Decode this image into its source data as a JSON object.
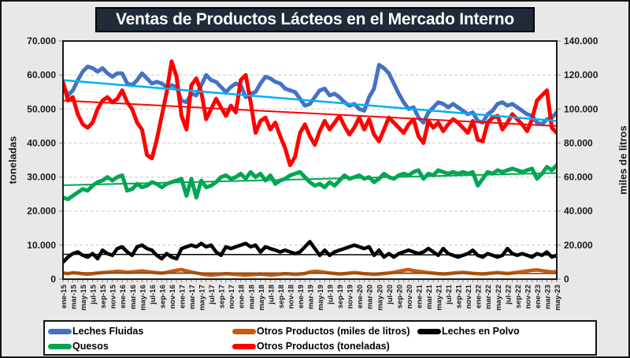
{
  "title": "Ventas de Productos Lácteos en el Mercado Interno",
  "legend": {
    "items": [
      {
        "label": "Leches Fluidas",
        "color": "#4472C4"
      },
      {
        "label": "Otros Productos (miles de litros)",
        "color": "#C55A11"
      },
      {
        "label": "Leches en Polvo",
        "color": "#000000"
      },
      {
        "label": "Quesos",
        "color": "#00A651"
      },
      {
        "label": "Otros Productos (toneladas)",
        "color": "#FF0000"
      }
    ]
  },
  "chart_data": {
    "type": "line",
    "title": "Ventas de Productos Lácteos en el Mercado Interno",
    "ylabel_left": "toneladas",
    "ylabel_right": "miles de litros",
    "ylim_left": [
      0,
      70000
    ],
    "ylim_right": [
      0,
      140000
    ],
    "grid": "horizontal-dashed",
    "legend_position": "bottom",
    "x_count": 101,
    "x_tick_step": 2,
    "y_left_tick_labels": [
      "0",
      "10.000",
      "20.000",
      "30.000",
      "40.000",
      "50.000",
      "60.000",
      "70.000"
    ],
    "y_right_tick_labels": [
      "0",
      "20.000",
      "40.000",
      "60.000",
      "80.000",
      "100.000",
      "120.000",
      "140.000"
    ],
    "x_tick_labels": [
      "ene-15",
      "mar-15",
      "may-15",
      "jul-15",
      "sep-15",
      "nov-15",
      "ene-16",
      "mar-16",
      "may-16",
      "jul-16",
      "sep-16",
      "nov-16",
      "ene-17",
      "mar-17",
      "may-17",
      "jul-17",
      "sep-17",
      "nov-17",
      "ene-18",
      "mar-18",
      "may-18",
      "jul-18",
      "sep-18",
      "nov-18",
      "ene-19",
      "mar-19",
      "may-19",
      "jul-19",
      "sep-19",
      "nov-19",
      "ene-20",
      "mar-20",
      "may-20",
      "jul-20",
      "sep-20",
      "nov-20",
      "ene-21",
      "mar-21",
      "may-21",
      "jul-21",
      "sep-21",
      "nov-21",
      "ene-22",
      "mar-22",
      "may-22",
      "jul-22",
      "sep-22",
      "nov-22",
      "ene-23",
      "mar-23",
      "may-23"
    ],
    "series": [
      {
        "id": "quesos",
        "name": "Quesos",
        "axis": "left",
        "color": "#00A651",
        "width": 5,
        "values": [
          24000,
          23500,
          24500,
          25500,
          26500,
          26000,
          27500,
          28500,
          29000,
          30000,
          29000,
          30000,
          30500,
          26000,
          26500,
          28000,
          27000,
          27500,
          28500,
          28000,
          27000,
          28000,
          28500,
          29000,
          29500,
          24500,
          29500,
          24000,
          29000,
          27000,
          27500,
          28500,
          30000,
          30500,
          29500,
          30000,
          31000,
          29500,
          31500,
          30000,
          31000,
          29000,
          30500,
          28000,
          29000,
          29500,
          30500,
          31000,
          31500,
          30000,
          28500,
          27500,
          28000,
          27000,
          28500,
          27500,
          29000,
          30500,
          29500,
          30000,
          30500,
          29500,
          30000,
          28500,
          29500,
          31000,
          30000,
          29500,
          30500,
          31000,
          30500,
          31500,
          32000,
          29500,
          31000,
          30500,
          32000,
          31500,
          31000,
          31500,
          31000,
          31500,
          31000,
          31500,
          27500,
          29500,
          31500,
          31000,
          32000,
          31500,
          32000,
          32500,
          32000,
          31500,
          32000,
          32500,
          29500,
          31000,
          33000,
          32000,
          33500
        ]
      },
      {
        "id": "otros_ml",
        "name": "Otros Productos (miles de litros)",
        "axis": "right",
        "color": "#C55A11",
        "width": 4.5,
        "values": [
          3600,
          3200,
          3800,
          3500,
          3100,
          2900,
          3200,
          3600,
          3900,
          4100,
          4300,
          4600,
          4400,
          4000,
          4200,
          4500,
          4800,
          4400,
          4100,
          3800,
          3500,
          4000,
          4600,
          5200,
          5600,
          4800,
          4200,
          3600,
          3000,
          2600,
          2400,
          2600,
          2900,
          3200,
          3000,
          2800,
          2600,
          2400,
          2600,
          2800,
          3000,
          2700,
          2400,
          2600,
          2900,
          3200,
          3000,
          2800,
          3000,
          3300,
          4200,
          4600,
          4400,
          4000,
          3600,
          3300,
          3000,
          3200,
          3500,
          3800,
          3500,
          3200,
          3000,
          2800,
          3000,
          3300,
          3600,
          4000,
          4600,
          5200,
          5600,
          5000,
          4600,
          4200,
          3800,
          3500,
          3200,
          3000,
          3200,
          3500,
          3800,
          4000,
          3700,
          3400,
          3200,
          3000,
          3300,
          3600,
          3900,
          3600,
          3300,
          3600,
          4000,
          4400,
          4800,
          5200,
          5400,
          5000,
          4600,
          4200,
          4400
        ]
      },
      {
        "id": "fluidas",
        "name": "Leches Fluidas",
        "axis": "left",
        "color": "#4472C4",
        "width": 5,
        "values": [
          57000,
          54000,
          55500,
          58500,
          61000,
          62500,
          62000,
          61000,
          62000,
          60500,
          59500,
          60500,
          60500,
          57500,
          57000,
          58500,
          60500,
          59000,
          57500,
          58000,
          57500,
          56500,
          57000,
          56500,
          52500,
          52000,
          54500,
          54000,
          57000,
          60000,
          58500,
          58000,
          56500,
          55000,
          56500,
          57500,
          57000,
          53500,
          54500,
          55000,
          57500,
          59500,
          59000,
          58000,
          57500,
          56000,
          55500,
          55000,
          53000,
          51000,
          51500,
          53500,
          55500,
          56000,
          54000,
          54500,
          53500,
          52000,
          51000,
          51500,
          50000,
          49500,
          53500,
          56000,
          63000,
          62000,
          60500,
          57500,
          54500,
          52000,
          50000,
          50500,
          47500,
          46000,
          49000,
          50500,
          52000,
          51500,
          50500,
          51500,
          50500,
          49500,
          48500,
          49000,
          46500,
          46000,
          48500,
          49500,
          51500,
          52000,
          51000,
          51500,
          50500,
          49500,
          48500,
          48000,
          46000,
          45500,
          47000,
          47500,
          49000
        ]
      },
      {
        "id": "otros_t",
        "name": "Otros Productos (toneladas)",
        "axis": "left",
        "color": "#FF0000",
        "width": 5,
        "values": [
          58000,
          52500,
          53500,
          48500,
          45500,
          44500,
          46000,
          50000,
          52500,
          53500,
          52000,
          53000,
          55500,
          52000,
          50000,
          46000,
          44000,
          36500,
          35500,
          41000,
          48000,
          55000,
          64000,
          59500,
          48000,
          44000,
          57000,
          59000,
          55000,
          47000,
          50000,
          53000,
          50500,
          48000,
          51000,
          49000,
          58500,
          60000,
          52000,
          43000,
          46500,
          47500,
          44000,
          46000,
          42000,
          38500,
          33500,
          36000,
          43000,
          45500,
          42000,
          39500,
          43500,
          46500,
          44000,
          46000,
          48000,
          45000,
          42500,
          44500,
          47500,
          44000,
          47000,
          42500,
          40500,
          44000,
          47500,
          46000,
          44500,
          43000,
          45500,
          47000,
          42000,
          40000,
          46500,
          44500,
          46000,
          43500,
          45500,
          47000,
          46000,
          44500,
          43000,
          46500,
          41000,
          40500,
          46000,
          47500,
          48000,
          44000,
          46000,
          48500,
          47000,
          45500,
          43500,
          47000,
          52500,
          54000,
          55500,
          44500,
          43000
        ]
      },
      {
        "id": "polvo",
        "name": "Leches en Polvo",
        "axis": "left",
        "color": "#000000",
        "width": 4.5,
        "values": [
          5000,
          6500,
          7500,
          8000,
          7000,
          6500,
          7500,
          6000,
          8500,
          7500,
          7000,
          9000,
          9500,
          8000,
          7000,
          9500,
          10000,
          9000,
          8500,
          7000,
          6000,
          7500,
          6500,
          6000,
          9000,
          9500,
          10000,
          9500,
          10500,
          9500,
          10000,
          8000,
          7000,
          9500,
          9000,
          9500,
          10000,
          10500,
          9500,
          10000,
          8000,
          9500,
          9000,
          8500,
          8000,
          8500,
          8000,
          7500,
          8000,
          9500,
          11000,
          9000,
          7000,
          8500,
          7000,
          8000,
          8500,
          9000,
          9500,
          10000,
          9500,
          9000,
          9500,
          7000,
          8500,
          6500,
          7500,
          6500,
          7500,
          8000,
          8500,
          8000,
          7500,
          8000,
          9000,
          8000,
          7000,
          9000,
          7500,
          7000,
          6500,
          7000,
          7500,
          8500,
          7000,
          6500,
          7500,
          7000,
          6500,
          7000,
          9000,
          7500,
          7000,
          7500,
          7000,
          6500,
          7500,
          7000,
          8000,
          6500,
          7000
        ]
      }
    ],
    "trendlines": [
      {
        "series": "Leches Fluidas",
        "axis": "left",
        "color": "#00B0F0",
        "width": 2.5,
        "start": 58500,
        "end": 46500
      },
      {
        "series": "Quesos",
        "axis": "left",
        "color": "#00A651",
        "width": 2,
        "start": 27600,
        "end": 31200
      },
      {
        "series": "Otros Productos (miles de litros)",
        "axis": "right",
        "color": "#8B4A10",
        "width": 2,
        "start": 3600,
        "end": 3400
      },
      {
        "series": "Otros Productos (toneladas)",
        "axis": "left",
        "color": "#FF0000",
        "width": 2,
        "start": 52500,
        "end": 45000
      },
      {
        "series": "Leches en Polvo",
        "axis": "left",
        "color": "#000000",
        "width": 1.5,
        "start": 7300,
        "end": 7100
      }
    ]
  }
}
